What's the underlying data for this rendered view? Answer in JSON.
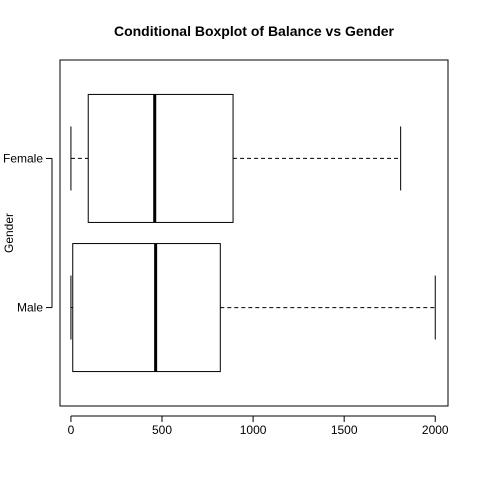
{
  "chart_data": {
    "type": "boxplot",
    "orientation": "horizontal",
    "title": "Conditional Boxplot of Balance vs Gender",
    "xlabel": "",
    "ylabel": "Gender",
    "xlim": [
      -60,
      2070
    ],
    "xticks": [
      0,
      500,
      1000,
      1500,
      2000
    ],
    "xtick_labels": [
      "0",
      "500",
      "1000",
      "1500",
      "2000"
    ],
    "grid": false,
    "categories": [
      "Female",
      "Male"
    ],
    "boxes": [
      {
        "label": "Female",
        "whisker_low": 0,
        "q1": 95,
        "median": 460,
        "q3": 890,
        "whisker_high": 1810
      },
      {
        "label": "Male",
        "whisker_low": 0,
        "q1": 10,
        "median": 465,
        "q3": 820,
        "whisker_high": 2000
      }
    ]
  }
}
